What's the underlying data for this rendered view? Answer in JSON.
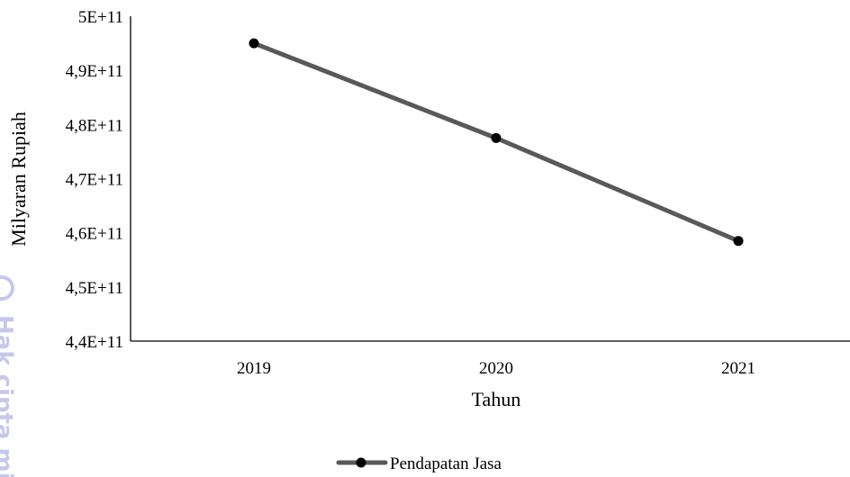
{
  "chart_data": {
    "type": "line",
    "xlabel": "Tahun",
    "ylabel": "Milyaran Rupiah",
    "categories": [
      "2019",
      "2020",
      "2021"
    ],
    "ylim": [
      440000000000,
      500000000000
    ],
    "yticks": [
      {
        "value": 440000000000,
        "label": "4,4E+11"
      },
      {
        "value": 450000000000,
        "label": "4,5E+11"
      },
      {
        "value": 460000000000,
        "label": "4,6E+11"
      },
      {
        "value": 470000000000,
        "label": "4,7E+11"
      },
      {
        "value": 480000000000,
        "label": "4,8E+11"
      },
      {
        "value": 490000000000,
        "label": "4,9E+11"
      },
      {
        "value": 500000000000,
        "label": "5E+11"
      }
    ],
    "series": [
      {
        "name": "Pendapatan Jasa",
        "values": [
          495000000000,
          477500000000,
          458500000000
        ],
        "color": "#595959",
        "marker_color": "#000000"
      }
    ],
    "grid": false,
    "legend": "bottom"
  },
  "watermark": {
    "text": "Hak cipta mi",
    "color": "#c5c8ea"
  }
}
